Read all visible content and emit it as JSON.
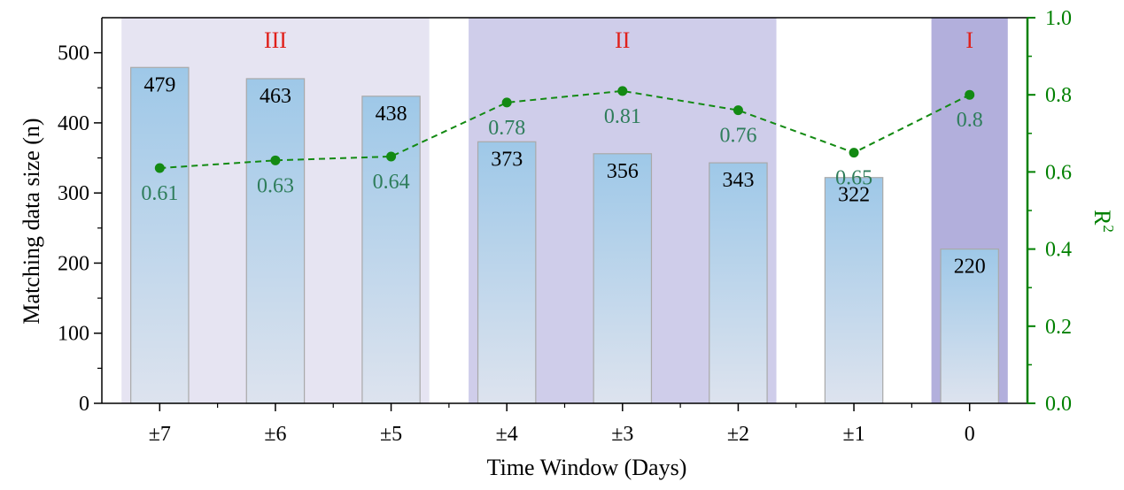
{
  "chart_data": {
    "type": "bar",
    "categories": [
      "±7",
      "±6",
      "±5",
      "±4",
      "±3",
      "±2",
      "±1",
      "0"
    ],
    "series": [
      {
        "values": [
          479,
          463,
          438,
          373,
          356,
          343,
          322,
          220
        ],
        "axis": "left"
      },
      {
        "type": "line",
        "values": [
          0.61,
          0.63,
          0.64,
          0.78,
          0.81,
          0.76,
          0.65,
          0.8
        ],
        "axis": "right",
        "style": "dashed",
        "marker": "circle"
      }
    ],
    "bar_labels": [
      "479",
      "463",
      "438",
      "373",
      "356",
      "343",
      "322",
      "220"
    ],
    "r2_labels": [
      "0.61",
      "0.63",
      "0.64",
      "0.78",
      "0.81",
      "0.76",
      "0.65",
      "0.8"
    ],
    "xlabel": "Time Window (Days)",
    "ylabel": "Matching data size (n)",
    "y2label": "R",
    "y2label_sup": "2",
    "ylim": [
      0,
      550
    ],
    "y2lim": [
      0.0,
      1.0
    ],
    "yticks": [
      "0",
      "100",
      "200",
      "300",
      "400",
      "500"
    ],
    "y2ticks": [
      "0.0",
      "0.2",
      "0.4",
      "0.6",
      "0.8",
      "1.0"
    ],
    "regions": [
      {
        "label": "III",
        "categories": [
          "±7",
          "±6",
          "±5"
        ],
        "color": "#e6e4f2"
      },
      {
        "label": "II",
        "categories": [
          "±4",
          "±3",
          "±2"
        ],
        "color": "#cfcdea"
      },
      {
        "label": "I",
        "categories": [
          "0"
        ],
        "color": "#b2afdc"
      }
    ],
    "colors": {
      "bar_top": "#9ec8e8",
      "bar_bottom": "#dde3ee",
      "bar_edge": "#a9a9a9",
      "line": "#138a13",
      "right_axis": "#008000",
      "region_label": "#e0201b",
      "r2_label": "#2e7d5b"
    },
    "grid": false,
    "legend": "none"
  }
}
